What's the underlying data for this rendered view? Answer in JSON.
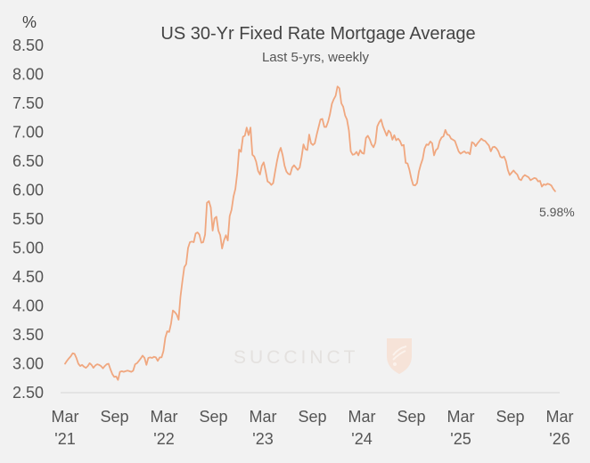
{
  "chart_data": {
    "type": "line",
    "title": "US 30-Yr Fixed Rate Mortgage Average",
    "subtitle": "Last 5-yrs, weekly",
    "y_unit": "%",
    "ylim": [
      2.5,
      8.5
    ],
    "y_ticks": [
      "8.50",
      "8.00",
      "7.50",
      "7.00",
      "6.50",
      "6.00",
      "5.50",
      "5.00",
      "4.50",
      "4.00",
      "3.50",
      "3.00",
      "2.50"
    ],
    "x_ticks": [
      {
        "month": "Mar",
        "year": "'21"
      },
      {
        "month": "Sep",
        "year": ""
      },
      {
        "month": "Mar",
        "year": "'22"
      },
      {
        "month": "Sep",
        "year": ""
      },
      {
        "month": "Mar",
        "year": "'23"
      },
      {
        "month": "Sep",
        "year": ""
      },
      {
        "month": "Mar",
        "year": "'24"
      },
      {
        "month": "Sep",
        "year": ""
      },
      {
        "month": "Mar",
        "year": "'25"
      },
      {
        "month": "Sep",
        "year": ""
      },
      {
        "month": "Mar",
        "year": "'26"
      }
    ],
    "x_domain": [
      0,
      260
    ],
    "line_color": "#f0a77f",
    "series": [
      {
        "name": "30-Yr Fixed Rate",
        "values": [
          [
            0,
            3.0
          ],
          [
            1,
            3.05
          ],
          [
            2,
            3.09
          ],
          [
            3,
            3.13
          ],
          [
            4,
            3.18
          ],
          [
            5,
            3.17
          ],
          [
            6,
            3.1
          ],
          [
            7,
            3.0
          ],
          [
            8,
            2.96
          ],
          [
            9,
            2.98
          ],
          [
            10,
            2.95
          ],
          [
            11,
            2.93
          ],
          [
            12,
            2.96
          ],
          [
            13,
            3.01
          ],
          [
            14,
            2.98
          ],
          [
            15,
            2.93
          ],
          [
            16,
            2.97
          ],
          [
            17,
            2.99
          ],
          [
            18,
            2.98
          ],
          [
            19,
            2.96
          ],
          [
            20,
            2.92
          ],
          [
            21,
            2.96
          ],
          [
            22,
            2.99
          ],
          [
            23,
            3.0
          ],
          [
            24,
            2.9
          ],
          [
            25,
            2.82
          ],
          [
            26,
            2.77
          ],
          [
            27,
            2.78
          ],
          [
            28,
            2.72
          ],
          [
            29,
            2.86
          ],
          [
            30,
            2.87
          ],
          [
            31,
            2.86
          ],
          [
            32,
            2.87
          ],
          [
            33,
            2.88
          ],
          [
            34,
            2.87
          ],
          [
            35,
            2.86
          ],
          [
            36,
            2.88
          ],
          [
            37,
            2.99
          ],
          [
            38,
            3.01
          ],
          [
            39,
            3.05
          ],
          [
            40,
            3.09
          ],
          [
            41,
            3.14
          ],
          [
            42,
            3.1
          ],
          [
            43,
            2.98
          ],
          [
            44,
            3.1
          ],
          [
            45,
            3.11
          ],
          [
            46,
            3.1
          ],
          [
            47,
            3.12
          ],
          [
            48,
            3.11
          ],
          [
            49,
            3.05
          ],
          [
            50,
            3.11
          ],
          [
            51,
            3.11
          ],
          [
            52,
            3.22
          ],
          [
            53,
            3.45
          ],
          [
            54,
            3.56
          ],
          [
            55,
            3.55
          ],
          [
            56,
            3.69
          ],
          [
            57,
            3.92
          ],
          [
            58,
            3.89
          ],
          [
            59,
            3.85
          ],
          [
            60,
            3.76
          ],
          [
            61,
            4.16
          ],
          [
            62,
            4.42
          ],
          [
            63,
            4.67
          ],
          [
            64,
            4.72
          ],
          [
            65,
            5.0
          ],
          [
            66,
            5.1
          ],
          [
            67,
            5.11
          ],
          [
            68,
            5.1
          ],
          [
            69,
            5.25
          ],
          [
            70,
            5.27
          ],
          [
            71,
            5.23
          ],
          [
            72,
            5.09
          ],
          [
            73,
            5.1
          ],
          [
            74,
            5.23
          ],
          [
            75,
            5.78
          ],
          [
            76,
            5.81
          ],
          [
            77,
            5.7
          ],
          [
            78,
            5.3
          ],
          [
            79,
            5.51
          ],
          [
            80,
            5.54
          ],
          [
            81,
            5.3
          ],
          [
            82,
            5.22
          ],
          [
            83,
            4.99
          ],
          [
            84,
            5.13
          ],
          [
            85,
            5.22
          ],
          [
            86,
            5.13
          ],
          [
            87,
            5.55
          ],
          [
            88,
            5.66
          ],
          [
            89,
            5.89
          ],
          [
            90,
            6.02
          ],
          [
            91,
            6.29
          ],
          [
            92,
            6.7
          ],
          [
            93,
            6.66
          ],
          [
            94,
            6.92
          ],
          [
            95,
            6.94
          ],
          [
            96,
            7.08
          ],
          [
            97,
            6.95
          ],
          [
            98,
            7.08
          ],
          [
            99,
            6.61
          ],
          [
            100,
            6.58
          ],
          [
            101,
            6.49
          ],
          [
            102,
            6.33
          ],
          [
            103,
            6.27
          ],
          [
            104,
            6.42
          ],
          [
            105,
            6.48
          ],
          [
            106,
            6.33
          ],
          [
            107,
            6.15
          ],
          [
            108,
            6.13
          ],
          [
            109,
            6.09
          ],
          [
            110,
            6.12
          ],
          [
            111,
            6.32
          ],
          [
            112,
            6.5
          ],
          [
            113,
            6.65
          ],
          [
            114,
            6.73
          ],
          [
            115,
            6.6
          ],
          [
            116,
            6.42
          ],
          [
            117,
            6.32
          ],
          [
            118,
            6.28
          ],
          [
            119,
            6.27
          ],
          [
            120,
            6.39
          ],
          [
            121,
            6.43
          ],
          [
            122,
            6.39
          ],
          [
            123,
            6.35
          ],
          [
            124,
            6.39
          ],
          [
            125,
            6.57
          ],
          [
            126,
            6.79
          ],
          [
            127,
            6.71
          ],
          [
            128,
            6.69
          ],
          [
            129,
            6.96
          ],
          [
            130,
            6.81
          ],
          [
            131,
            6.78
          ],
          [
            132,
            6.81
          ],
          [
            133,
            6.96
          ],
          [
            134,
            7.09
          ],
          [
            135,
            7.22
          ],
          [
            136,
            7.23
          ],
          [
            137,
            7.09
          ],
          [
            138,
            7.09
          ],
          [
            139,
            7.18
          ],
          [
            140,
            7.31
          ],
          [
            141,
            7.49
          ],
          [
            142,
            7.57
          ],
          [
            143,
            7.63
          ],
          [
            144,
            7.79
          ],
          [
            145,
            7.76
          ],
          [
            146,
            7.5
          ],
          [
            147,
            7.44
          ],
          [
            148,
            7.29
          ],
          [
            149,
            7.22
          ],
          [
            150,
            7.03
          ],
          [
            151,
            6.67
          ],
          [
            152,
            6.61
          ],
          [
            153,
            6.62
          ],
          [
            154,
            6.66
          ],
          [
            155,
            6.6
          ],
          [
            156,
            6.69
          ],
          [
            157,
            6.64
          ],
          [
            158,
            6.63
          ],
          [
            159,
            6.9
          ],
          [
            160,
            6.94
          ],
          [
            161,
            6.88
          ],
          [
            162,
            6.79
          ],
          [
            163,
            6.74
          ],
          [
            164,
            6.82
          ],
          [
            165,
            7.1
          ],
          [
            166,
            7.17
          ],
          [
            167,
            7.22
          ],
          [
            168,
            7.1
          ],
          [
            169,
            7.02
          ],
          [
            170,
            6.94
          ],
          [
            171,
            7.03
          ],
          [
            172,
            6.99
          ],
          [
            173,
            6.87
          ],
          [
            174,
            6.95
          ],
          [
            175,
            6.86
          ],
          [
            176,
            6.89
          ],
          [
            177,
            6.85
          ],
          [
            178,
            6.77
          ],
          [
            179,
            6.78
          ],
          [
            180,
            6.47
          ],
          [
            181,
            6.46
          ],
          [
            182,
            6.35
          ],
          [
            183,
            6.2
          ],
          [
            184,
            6.09
          ],
          [
            185,
            6.08
          ],
          [
            186,
            6.12
          ],
          [
            187,
            6.32
          ],
          [
            188,
            6.44
          ],
          [
            189,
            6.54
          ],
          [
            190,
            6.72
          ],
          [
            191,
            6.79
          ],
          [
            192,
            6.78
          ],
          [
            193,
            6.84
          ],
          [
            194,
            6.81
          ],
          [
            195,
            6.6
          ],
          [
            196,
            6.69
          ],
          [
            197,
            6.72
          ],
          [
            198,
            6.85
          ],
          [
            199,
            6.91
          ],
          [
            200,
            6.93
          ],
          [
            201,
            7.04
          ],
          [
            202,
            6.96
          ],
          [
            203,
            6.95
          ],
          [
            204,
            6.89
          ],
          [
            205,
            6.87
          ],
          [
            206,
            6.85
          ],
          [
            207,
            6.76
          ],
          [
            208,
            6.67
          ],
          [
            209,
            6.63
          ],
          [
            210,
            6.65
          ],
          [
            211,
            6.67
          ],
          [
            212,
            6.64
          ],
          [
            213,
            6.65
          ],
          [
            214,
            6.62
          ],
          [
            215,
            6.83
          ],
          [
            216,
            6.81
          ],
          [
            217,
            6.76
          ],
          [
            218,
            6.81
          ],
          [
            219,
            6.85
          ],
          [
            220,
            6.89
          ],
          [
            221,
            6.86
          ],
          [
            222,
            6.85
          ],
          [
            223,
            6.81
          ],
          [
            224,
            6.77
          ],
          [
            225,
            6.67
          ],
          [
            226,
            6.74
          ],
          [
            227,
            6.75
          ],
          [
            228,
            6.72
          ],
          [
            229,
            6.67
          ],
          [
            230,
            6.58
          ],
          [
            231,
            6.56
          ],
          [
            232,
            6.58
          ],
          [
            233,
            6.5
          ],
          [
            234,
            6.35
          ],
          [
            235,
            6.26
          ],
          [
            236,
            6.3
          ],
          [
            237,
            6.34
          ],
          [
            238,
            6.3
          ],
          [
            239,
            6.27
          ],
          [
            240,
            6.19
          ],
          [
            241,
            6.17
          ],
          [
            242,
            6.23
          ],
          [
            243,
            6.26
          ],
          [
            244,
            6.24
          ],
          [
            245,
            6.22
          ],
          [
            246,
            6.17
          ],
          [
            247,
            6.19
          ],
          [
            248,
            6.21
          ],
          [
            249,
            6.2
          ],
          [
            250,
            6.15
          ],
          [
            251,
            6.16
          ],
          [
            252,
            6.06
          ],
          [
            253,
            6.1
          ],
          [
            254,
            6.09
          ],
          [
            255,
            6.11
          ],
          [
            256,
            6.1
          ],
          [
            257,
            6.08
          ],
          [
            258,
            6.02
          ],
          [
            259,
            5.98
          ]
        ]
      }
    ],
    "end_label": "5.98%",
    "watermark": "SUCCINCT"
  }
}
